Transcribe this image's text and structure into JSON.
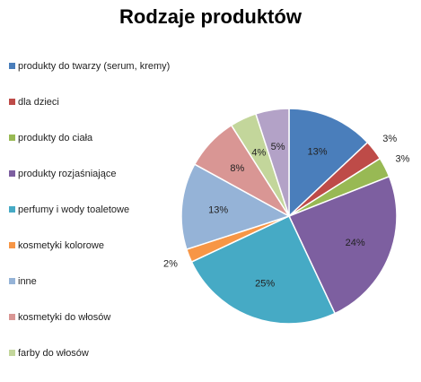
{
  "chart_data": {
    "type": "pie",
    "title": "Rodzaje produktów",
    "legend_position": "left",
    "slices": [
      {
        "label": "produkty do twarzy (serum, kremy)",
        "value": 13,
        "value_label": "13%",
        "color": "#4a7ebb"
      },
      {
        "label": "dla dzieci",
        "value": 3,
        "value_label": "3%",
        "color": "#be4b48"
      },
      {
        "label": "produkty do ciała",
        "value": 3,
        "value_label": "3%",
        "color": "#98b954"
      },
      {
        "label": "produkty rozjaśniające",
        "value": 24,
        "value_label": "24%",
        "color": "#7d5fa0"
      },
      {
        "label": "perfumy i wody toaletowe",
        "value": 25,
        "value_label": "25%",
        "color": "#46aac5"
      },
      {
        "label": "kosmetyki kolorowe",
        "value": 2,
        "value_label": "2%",
        "color": "#f79646"
      },
      {
        "label": "inne",
        "value": 13,
        "value_label": "13%",
        "color": "#95b3d7"
      },
      {
        "label": "kosmetyki do włosów",
        "value": 8,
        "value_label": "8%",
        "color": "#d99694"
      },
      {
        "label": "farby do włosów",
        "value": 4,
        "value_label": "4%",
        "color": "#c3d69b"
      },
      {
        "label": "",
        "value": 5,
        "value_label": "5%",
        "color": "#b3a2c7"
      }
    ]
  }
}
